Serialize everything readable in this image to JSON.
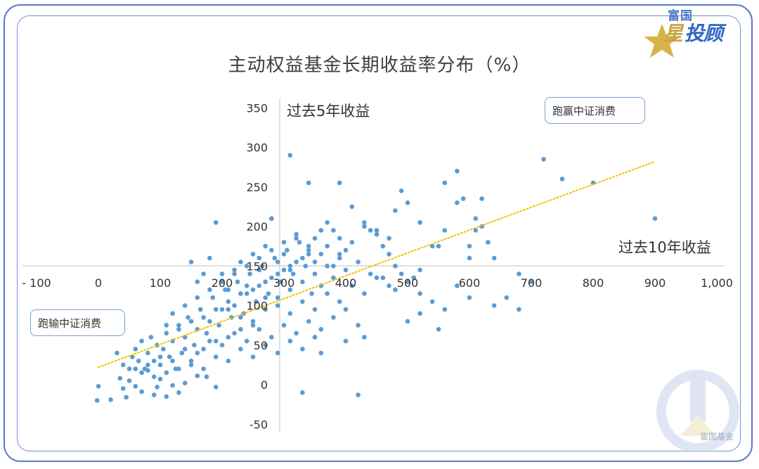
{
  "brand": {
    "small": "富国",
    "star_char": "星",
    "big": "投顾"
  },
  "watermark": {
    "text": "富国基金"
  },
  "colors": {
    "point": "#5b9bd5",
    "trend": "#f2c200",
    "axis": "#bfbfbf",
    "frame": "#5b78c8"
  },
  "chart_data": {
    "type": "scatter",
    "title": "主动权益基金长期收益率分布（%）",
    "xlabel": "过去10年收益",
    "ylabel": "过去5年收益",
    "xlim": [
      -100,
      1000
    ],
    "ylim": [
      -50,
      350
    ],
    "x_ticks": [
      "- 100",
      "0",
      "100",
      "200",
      "300",
      "400",
      "500",
      "600",
      "700",
      "800",
      "900",
      "1,000"
    ],
    "y_ticks": [
      "-50",
      "0",
      "50",
      "100",
      "150",
      "200",
      "250",
      "300",
      "350"
    ],
    "annotations": {
      "upper": "跑赢中证消费",
      "lower": "跑输中证消费"
    },
    "trendline": {
      "style": "dotted",
      "from": [
        0,
        22
      ],
      "to": [
        900,
        282
      ]
    },
    "series": [
      {
        "points": [
          [
            -2,
            -20
          ],
          [
            0,
            -2
          ],
          [
            20,
            -19
          ],
          [
            35,
            8
          ],
          [
            40,
            -5
          ],
          [
            45,
            -16
          ],
          [
            50,
            5
          ],
          [
            60,
            -2
          ],
          [
            70,
            -9
          ],
          [
            80,
            18
          ],
          [
            90,
            -13
          ],
          [
            95,
            -3
          ],
          [
            100,
            7
          ],
          [
            110,
            -15
          ],
          [
            120,
            -1
          ],
          [
            130,
            -10
          ],
          [
            140,
            2
          ],
          [
            160,
            11
          ],
          [
            175,
            10
          ],
          [
            190,
            -3
          ],
          [
            330,
            -10
          ],
          [
            420,
            -13
          ],
          [
            30,
            40
          ],
          [
            40,
            25
          ],
          [
            50,
            20
          ],
          [
            55,
            35
          ],
          [
            60,
            45
          ],
          [
            65,
            30
          ],
          [
            70,
            55
          ],
          [
            75,
            20
          ],
          [
            80,
            40
          ],
          [
            85,
            60
          ],
          [
            90,
            30
          ],
          [
            95,
            50
          ],
          [
            100,
            25
          ],
          [
            105,
            45
          ],
          [
            110,
            65
          ],
          [
            115,
            35
          ],
          [
            120,
            55
          ],
          [
            125,
            20
          ],
          [
            130,
            75
          ],
          [
            135,
            40
          ],
          [
            140,
            60
          ],
          [
            145,
            85
          ],
          [
            150,
            30
          ],
          [
            155,
            50
          ],
          [
            160,
            70
          ],
          [
            165,
            95
          ],
          [
            170,
            45
          ],
          [
            175,
            65
          ],
          [
            180,
            80
          ],
          [
            185,
            110
          ],
          [
            190,
            55
          ],
          [
            195,
            75
          ],
          [
            200,
            95
          ],
          [
            205,
            120
          ],
          [
            210,
            60
          ],
          [
            215,
            85
          ],
          [
            220,
            100
          ],
          [
            225,
            130
          ],
          [
            230,
            70
          ],
          [
            235,
            90
          ],
          [
            240,
            115
          ],
          [
            245,
            140
          ],
          [
            250,
            80
          ],
          [
            255,
            105
          ],
          [
            260,
            125
          ],
          [
            265,
            150
          ],
          [
            270,
            95
          ],
          [
            275,
            115
          ],
          [
            280,
            135
          ],
          [
            285,
            160
          ],
          [
            290,
            110
          ],
          [
            295,
            130
          ],
          [
            300,
            145
          ],
          [
            305,
            170
          ],
          [
            310,
            120
          ],
          [
            315,
            140
          ],
          [
            320,
            155
          ],
          [
            325,
            180
          ],
          [
            330,
            130
          ],
          [
            335,
            150
          ],
          [
            340,
            165
          ],
          [
            345,
            115
          ],
          [
            350,
            140
          ],
          [
            360,
            125
          ],
          [
            370,
            150
          ],
          [
            380,
            135
          ],
          [
            390,
            160
          ],
          [
            400,
            145
          ],
          [
            60,
            20
          ],
          [
            70,
            15
          ],
          [
            80,
            25
          ],
          [
            90,
            10
          ],
          [
            100,
            35
          ],
          [
            110,
            15
          ],
          [
            120,
            30
          ],
          [
            130,
            20
          ],
          [
            140,
            45
          ],
          [
            150,
            25
          ],
          [
            160,
            40
          ],
          [
            170,
            20
          ],
          [
            180,
            55
          ],
          [
            190,
            35
          ],
          [
            200,
            50
          ],
          [
            210,
            30
          ],
          [
            220,
            65
          ],
          [
            230,
            45
          ],
          [
            240,
            55
          ],
          [
            250,
            35
          ],
          [
            260,
            70
          ],
          [
            270,
            50
          ],
          [
            280,
            60
          ],
          [
            290,
            40
          ],
          [
            300,
            75
          ],
          [
            310,
            55
          ],
          [
            320,
            65
          ],
          [
            330,
            45
          ],
          [
            340,
            80
          ],
          [
            350,
            60
          ],
          [
            360,
            70
          ],
          [
            380,
            85
          ],
          [
            400,
            95
          ],
          [
            420,
            75
          ],
          [
            110,
            75
          ],
          [
            120,
            90
          ],
          [
            130,
            70
          ],
          [
            140,
            100
          ],
          [
            150,
            80
          ],
          [
            160,
            110
          ],
          [
            170,
            85
          ],
          [
            180,
            120
          ],
          [
            190,
            95
          ],
          [
            200,
            130
          ],
          [
            210,
            105
          ],
          [
            220,
            140
          ],
          [
            230,
            115
          ],
          [
            240,
            150
          ],
          [
            250,
            120
          ],
          [
            260,
            160
          ],
          [
            270,
            130
          ],
          [
            280,
            170
          ],
          [
            290,
            140
          ],
          [
            300,
            180
          ],
          [
            310,
            150
          ],
          [
            320,
            185
          ],
          [
            330,
            160
          ],
          [
            340,
            175
          ],
          [
            350,
            155
          ],
          [
            360,
            165
          ],
          [
            370,
            175
          ],
          [
            380,
            150
          ],
          [
            390,
            165
          ],
          [
            400,
            170
          ],
          [
            410,
            180
          ],
          [
            420,
            155
          ],
          [
            150,
            155
          ],
          [
            160,
            130
          ],
          [
            170,
            140
          ],
          [
            180,
            160
          ],
          [
            190,
            205
          ],
          [
            200,
            140
          ],
          [
            210,
            120
          ],
          [
            220,
            145
          ],
          [
            230,
            155
          ],
          [
            240,
            125
          ],
          [
            250,
            165
          ],
          [
            260,
            145
          ],
          [
            270,
            175
          ],
          [
            280,
            210
          ],
          [
            290,
            155
          ],
          [
            300,
            165
          ],
          [
            310,
            145
          ],
          [
            320,
            190
          ],
          [
            340,
            170
          ],
          [
            350,
            185
          ],
          [
            360,
            195
          ],
          [
            370,
            205
          ],
          [
            380,
            195
          ],
          [
            390,
            185
          ],
          [
            410,
            225
          ],
          [
            430,
            205
          ],
          [
            440,
            195
          ],
          [
            450,
            190
          ],
          [
            460,
            175
          ],
          [
            470,
            165
          ],
          [
            480,
            150
          ],
          [
            210,
            95
          ],
          [
            230,
            85
          ],
          [
            250,
            75
          ],
          [
            270,
            110
          ],
          [
            290,
            100
          ],
          [
            310,
            90
          ],
          [
            330,
            105
          ],
          [
            350,
            95
          ],
          [
            370,
            115
          ],
          [
            390,
            105
          ],
          [
            410,
            125
          ],
          [
            430,
            115
          ],
          [
            450,
            135
          ],
          [
            470,
            125
          ],
          [
            490,
            140
          ],
          [
            510,
            135
          ],
          [
            440,
            140
          ],
          [
            460,
            135
          ],
          [
            480,
            120
          ],
          [
            500,
            130
          ],
          [
            520,
            115
          ],
          [
            540,
            105
          ],
          [
            560,
            95
          ],
          [
            580,
            125
          ],
          [
            600,
            110
          ],
          [
            500,
            80
          ],
          [
            520,
            90
          ],
          [
            550,
            70
          ],
          [
            430,
            60
          ],
          [
            400,
            55
          ],
          [
            360,
            40
          ],
          [
            280,
            210
          ],
          [
            310,
            290
          ],
          [
            340,
            255
          ],
          [
            390,
            255
          ],
          [
            430,
            200
          ],
          [
            450,
            195
          ],
          [
            470,
            185
          ],
          [
            480,
            220
          ],
          [
            490,
            245
          ],
          [
            500,
            230
          ],
          [
            520,
            205
          ],
          [
            550,
            175
          ],
          [
            560,
            195
          ],
          [
            580,
            230
          ],
          [
            600,
            160
          ],
          [
            610,
            210
          ],
          [
            620,
            200
          ],
          [
            640,
            160
          ],
          [
            680,
            140
          ],
          [
            700,
            130
          ],
          [
            720,
            285
          ],
          [
            750,
            260
          ],
          [
            800,
            255
          ],
          [
            900,
            210
          ],
          [
            520,
            145
          ],
          [
            540,
            175
          ],
          [
            560,
            255
          ],
          [
            580,
            270
          ],
          [
            590,
            235
          ],
          [
            600,
            175
          ],
          [
            610,
            195
          ],
          [
            620,
            235
          ],
          [
            630,
            180
          ],
          [
            640,
            100
          ],
          [
            660,
            110
          ],
          [
            680,
            95
          ]
        ]
      }
    ]
  }
}
